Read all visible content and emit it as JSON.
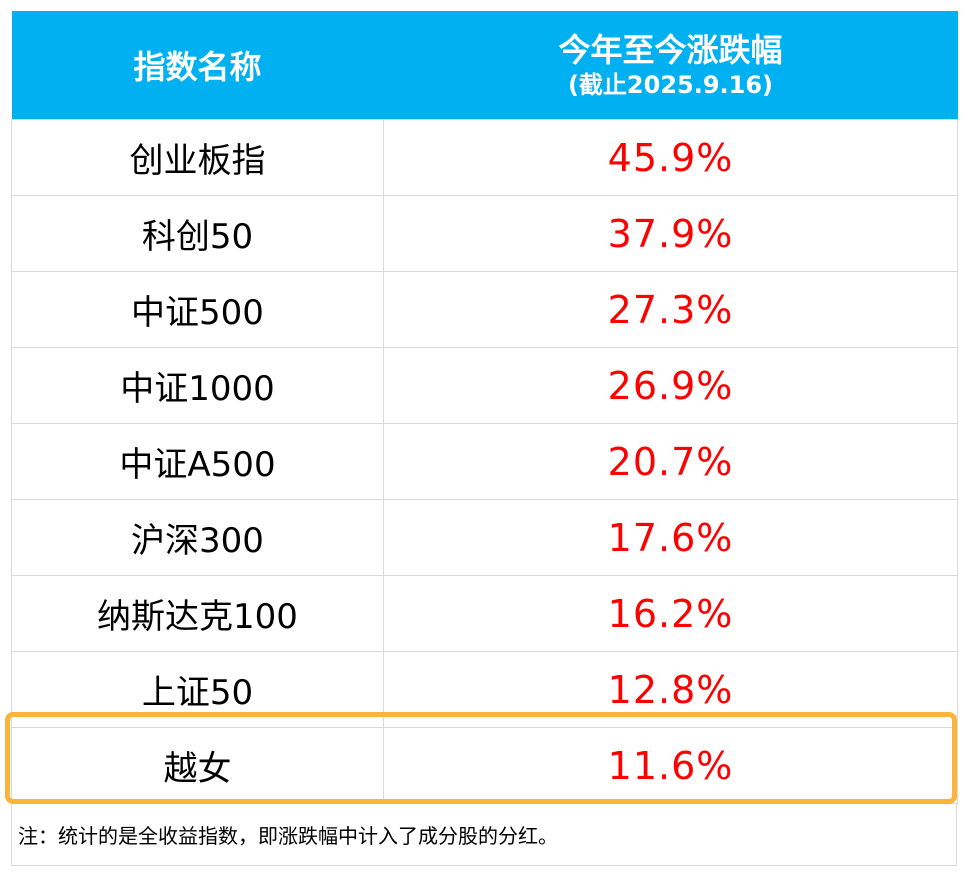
{
  "header": {
    "col1": "指数名称",
    "col2_title": "今年至今涨跌幅",
    "col2_sub": "(截止2025.9.16)"
  },
  "rows": [
    {
      "name": "创业板指",
      "value": "45.9%"
    },
    {
      "name": "科创50",
      "value": "37.9%"
    },
    {
      "name": "中证500",
      "value": "27.3%"
    },
    {
      "name": "中证1000",
      "value": "26.9%"
    },
    {
      "name": "中证A500",
      "value": "20.7%"
    },
    {
      "name": "沪深300",
      "value": "17.6%"
    },
    {
      "name": "纳斯达克100",
      "value": "16.2%"
    },
    {
      "name": "上证50",
      "value": "12.8%"
    },
    {
      "name": "越女",
      "value": "11.6%"
    }
  ],
  "note": "注：统计的是全收益指数，即涨跌幅中计入了成分股的分红。",
  "colors": {
    "header_bg": "#00b0f0",
    "value_text": "#ff0000",
    "highlight_border": "#fbb43a"
  }
}
